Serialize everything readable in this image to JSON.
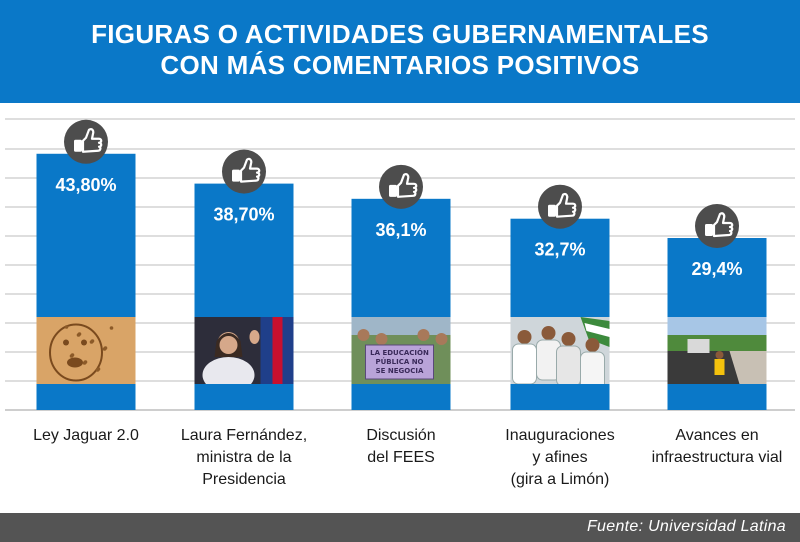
{
  "header": {
    "title_line1": "FIGURAS O ACTIVIDADES GUBERNAMENTALES",
    "title_line2": "CON MÁS COMENTARIOS POSITIVOS"
  },
  "footer": {
    "source": "Fuente: Universidad Latina"
  },
  "colors": {
    "header_bg": "#0a78c8",
    "bar": "#0a78c8",
    "badge": "#4d4d4d",
    "footer_bg": "#545454",
    "grid": "#bdbdbd"
  },
  "icons": {
    "badge": "thumbs-up-icon"
  },
  "chart_data": {
    "type": "bar",
    "title": "FIGURAS O ACTIVIDADES GUBERNAMENTALES CON MÁS COMENTARIOS POSITIVOS",
    "categories": [
      [
        "Ley Jaguar 2.0"
      ],
      [
        "Laura Fernández,",
        "ministra de la",
        "Presidencia"
      ],
      [
        "Discusión",
        "del FEES"
      ],
      [
        "Inauguraciones",
        "y afines",
        "(gira a Limón)"
      ],
      [
        "Avances en",
        "infraestructura vial"
      ]
    ],
    "values": [
      43.8,
      38.7,
      36.1,
      32.7,
      29.4
    ],
    "value_labels": [
      "43,80%",
      "38,70%",
      "36,1%",
      "32,7%",
      "29,4%"
    ],
    "photos": [
      {
        "kind": "jaguar"
      },
      {
        "kind": "speaker"
      },
      {
        "kind": "protest",
        "sign_text": [
          "LA EDUCACIÓN",
          "PÚBLICA NO",
          "SE NEGOCIA"
        ]
      },
      {
        "kind": "crowd"
      },
      {
        "kind": "road"
      }
    ],
    "ylim": [
      0,
      50
    ],
    "grid": true,
    "legend": "none",
    "xlabel": "",
    "ylabel": ""
  }
}
